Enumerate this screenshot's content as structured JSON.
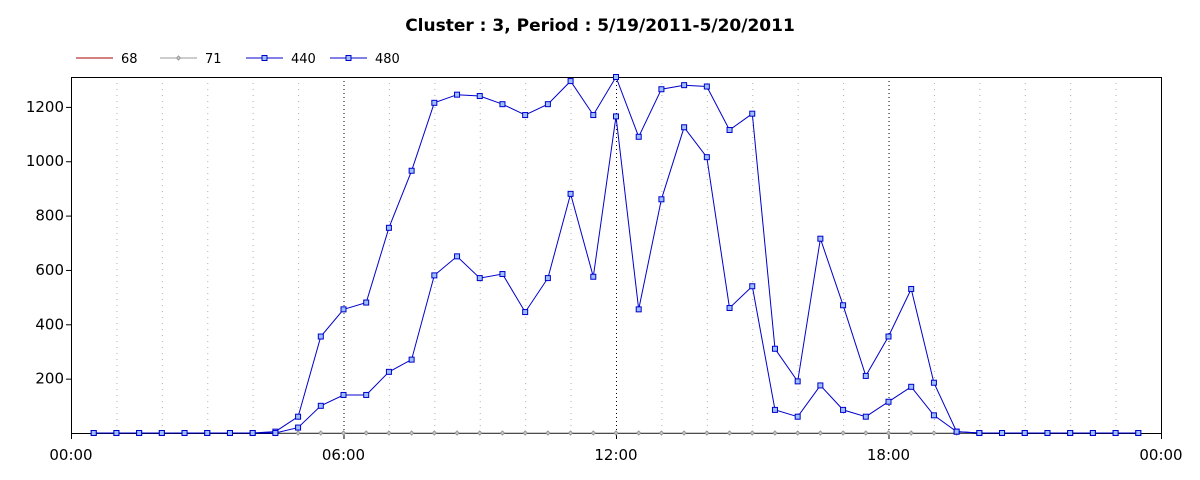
{
  "chart_data": {
    "type": "line",
    "title": "Cluster : 3, Period : 5/19/2011-5/20/2011",
    "xlabel": "",
    "ylabel": "",
    "x_ticks": [
      "00:00",
      "06:00",
      "12:00",
      "18:00",
      "00:00"
    ],
    "y_ticks": [
      200,
      400,
      600,
      800,
      1000,
      1200
    ],
    "xlim_hours": [
      0,
      24
    ],
    "ylim": [
      0,
      1310
    ],
    "grid": "vertical dotted",
    "legend_position": "top-left",
    "series": [
      {
        "name": "68",
        "color": "#aa0000",
        "marker": "none",
        "x": [
          0.5,
          1.0,
          1.5,
          2.0,
          2.5,
          3.0,
          3.5,
          4.0,
          4.5,
          5.0,
          5.5,
          6.0,
          6.5,
          7.0,
          7.5,
          8.0,
          8.5,
          9.0,
          9.5,
          10.0,
          10.5,
          11.0,
          11.5,
          12.0,
          12.5,
          13.0,
          13.5,
          14.0,
          14.5,
          15.0,
          15.5,
          16.0,
          16.5,
          17.0,
          17.5,
          18.0,
          18.5,
          19.0,
          19.5,
          20.0,
          20.5,
          21.0,
          21.5,
          22.0,
          22.5,
          23.0,
          23.5
        ],
        "values": [
          0,
          0,
          0,
          0,
          0,
          0,
          0,
          0,
          0,
          0,
          0,
          0,
          0,
          0,
          0,
          0,
          0,
          0,
          0,
          0,
          0,
          0,
          0,
          0,
          0,
          0,
          0,
          0,
          0,
          0,
          0,
          0,
          0,
          0,
          0,
          0,
          0,
          0,
          0,
          0,
          0,
          0,
          0,
          0,
          0,
          0,
          0
        ]
      },
      {
        "name": "71",
        "color": "#999999",
        "marker": "diamond",
        "x": [
          0.5,
          1.0,
          1.5,
          2.0,
          2.5,
          3.0,
          3.5,
          4.0,
          4.5,
          5.0,
          5.5,
          6.0,
          6.5,
          7.0,
          7.5,
          8.0,
          8.5,
          9.0,
          9.5,
          10.0,
          10.5,
          11.0,
          11.5,
          12.0,
          12.5,
          13.0,
          13.5,
          14.0,
          14.5,
          15.0,
          15.5,
          16.0,
          16.5,
          17.0,
          17.5,
          18.0,
          18.5,
          19.0,
          19.5,
          20.0,
          20.5,
          21.0,
          21.5,
          22.0,
          22.5,
          23.0,
          23.5
        ],
        "values": [
          0,
          0,
          0,
          0,
          0,
          0,
          0,
          0,
          0,
          0,
          0,
          0,
          0,
          0,
          0,
          0,
          0,
          0,
          0,
          0,
          0,
          0,
          0,
          0,
          0,
          0,
          0,
          0,
          0,
          0,
          0,
          0,
          0,
          0,
          0,
          0,
          0,
          0,
          0,
          0,
          0,
          0,
          0,
          0,
          0,
          0,
          0
        ]
      },
      {
        "name": "440",
        "color": "#0000cc",
        "marker": "square",
        "x": [
          0.5,
          1.0,
          1.5,
          2.0,
          2.5,
          3.0,
          3.5,
          4.0,
          4.5,
          5.0,
          5.5,
          6.0,
          6.5,
          7.0,
          7.5,
          8.0,
          8.5,
          9.0,
          9.5,
          10.0,
          10.5,
          11.0,
          11.5,
          12.0,
          12.5,
          13.0,
          13.5,
          14.0,
          14.5,
          15.0,
          15.5,
          16.0,
          16.5,
          17.0,
          17.5,
          18.0,
          18.5,
          19.0,
          19.5,
          20.0,
          20.5,
          21.0,
          21.5,
          22.0,
          22.5,
          23.0,
          23.5
        ],
        "values": [
          0,
          0,
          0,
          0,
          0,
          0,
          0,
          0,
          5,
          60,
          355,
          455,
          480,
          755,
          965,
          1215,
          1245,
          1240,
          1210,
          1170,
          1210,
          1295,
          1170,
          1310,
          1090,
          1265,
          1280,
          1275,
          1115,
          1175,
          310,
          190,
          715,
          470,
          210,
          355,
          530,
          185,
          5,
          0,
          0,
          0,
          0,
          0,
          0,
          0,
          0
        ]
      },
      {
        "name": "480",
        "color": "#0000cc",
        "marker": "square",
        "x": [
          0.5,
          1.0,
          1.5,
          2.0,
          2.5,
          3.0,
          3.5,
          4.0,
          4.5,
          5.0,
          5.5,
          6.0,
          6.5,
          7.0,
          7.5,
          8.0,
          8.5,
          9.0,
          9.5,
          10.0,
          10.5,
          11.0,
          11.5,
          12.0,
          12.5,
          13.0,
          13.5,
          14.0,
          14.5,
          15.0,
          15.5,
          16.0,
          16.5,
          17.0,
          17.5,
          18.0,
          18.5,
          19.0,
          19.5,
          20.0,
          20.5,
          21.0,
          21.5,
          22.0,
          22.5,
          23.0,
          23.5
        ],
        "values": [
          0,
          0,
          0,
          0,
          0,
          0,
          0,
          0,
          0,
          20,
          100,
          140,
          140,
          225,
          270,
          580,
          650,
          570,
          585,
          445,
          570,
          880,
          575,
          1165,
          455,
          860,
          1125,
          1015,
          460,
          540,
          85,
          60,
          175,
          85,
          60,
          115,
          170,
          65,
          5,
          0,
          0,
          0,
          0,
          0,
          0,
          0,
          0
        ]
      }
    ]
  }
}
